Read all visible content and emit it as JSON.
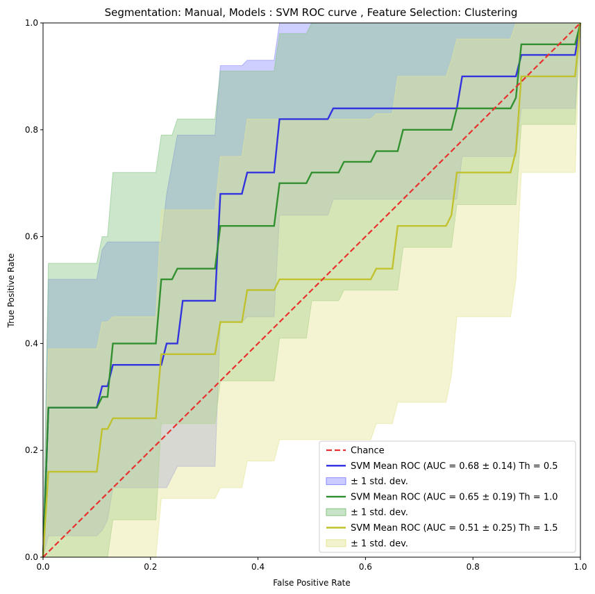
{
  "chart_data": {
    "type": "line",
    "title": "Segmentation: Manual, Models : SVM ROC curve , Feature Selection: Clustering",
    "xlabel": "False Positive Rate",
    "ylabel": "True Positive Rate",
    "xlim": [
      0,
      1
    ],
    "ylim": [
      0,
      1
    ],
    "xticks": [
      "0.0",
      "0.2",
      "0.4",
      "0.6",
      "0.8",
      "1.0"
    ],
    "yticks": [
      "0.0",
      "0.2",
      "0.4",
      "0.6",
      "0.8",
      "1.0"
    ],
    "grid": false,
    "legend_position": "lower-right",
    "chance": {
      "name": "Chance",
      "color": "#e8312f",
      "x": [
        0,
        1
      ],
      "y": [
        0,
        1
      ]
    },
    "series": [
      {
        "name": "SVM Mean ROC (AUC = 0.68 ± 0.14) Th = 0.5",
        "color": "#2a2ae0",
        "band_name": "± 1 std. dev.",
        "band_color": "#8c8cff",
        "x": [
          0,
          0.01,
          0.1,
          0.11,
          0.12,
          0.13,
          0.22,
          0.23,
          0.25,
          0.26,
          0.32,
          0.33,
          0.37,
          0.38,
          0.43,
          0.44,
          0.53,
          0.54,
          0.77,
          0.78,
          0.88,
          0.89,
          0.99,
          1.0
        ],
        "y": [
          0,
          0.28,
          0.28,
          0.32,
          0.32,
          0.36,
          0.36,
          0.4,
          0.4,
          0.48,
          0.48,
          0.68,
          0.68,
          0.72,
          0.72,
          0.82,
          0.82,
          0.84,
          0.84,
          0.9,
          0.9,
          0.94,
          0.94,
          1.0
        ],
        "upper": [
          0,
          0.52,
          0.52,
          0.575,
          0.59,
          0.59,
          0.59,
          0.68,
          0.79,
          0.79,
          0.79,
          0.92,
          0.92,
          0.93,
          0.93,
          1.0,
          1.0,
          1.0,
          1.0,
          1.0,
          1.0,
          1.0,
          1.0,
          1.0
        ],
        "lower": [
          0,
          0.04,
          0.04,
          0.05,
          0.07,
          0.13,
          0.13,
          0.13,
          0.17,
          0.17,
          0.17,
          0.44,
          0.44,
          0.45,
          0.45,
          0.64,
          0.64,
          0.67,
          0.67,
          0.75,
          0.75,
          0.84,
          0.84,
          1.0
        ]
      },
      {
        "name": "SVM Mean ROC (AUC = 0.65 ± 0.19) Th = 1.0",
        "color": "#2a8c2a",
        "band_name": "± 1 std. dev.",
        "band_color": "#86c486",
        "x": [
          0,
          0.01,
          0.1,
          0.11,
          0.12,
          0.13,
          0.21,
          0.22,
          0.24,
          0.25,
          0.32,
          0.33,
          0.43,
          0.44,
          0.49,
          0.5,
          0.55,
          0.56,
          0.61,
          0.62,
          0.66,
          0.67,
          0.76,
          0.77,
          0.87,
          0.88,
          0.89,
          0.99,
          1.0
        ],
        "y": [
          0,
          0.28,
          0.28,
          0.3,
          0.3,
          0.4,
          0.4,
          0.52,
          0.52,
          0.54,
          0.54,
          0.62,
          0.62,
          0.7,
          0.7,
          0.72,
          0.72,
          0.74,
          0.74,
          0.76,
          0.76,
          0.8,
          0.8,
          0.84,
          0.84,
          0.86,
          0.96,
          0.96,
          1.0
        ],
        "upper": [
          0,
          0.55,
          0.55,
          0.6,
          0.6,
          0.72,
          0.72,
          0.79,
          0.79,
          0.82,
          0.82,
          0.91,
          0.91,
          0.98,
          0.98,
          1.0,
          1.0,
          1.0,
          1.0,
          1.0,
          1.0,
          1.0,
          1.0,
          1.0,
          1.0,
          1.0,
          1.0,
          1.0,
          1.0
        ],
        "lower": [
          0,
          0.0,
          0.0,
          0.0,
          0.0,
          0.07,
          0.07,
          0.25,
          0.25,
          0.25,
          0.25,
          0.33,
          0.33,
          0.41,
          0.41,
          0.48,
          0.48,
          0.5,
          0.5,
          0.5,
          0.5,
          0.58,
          0.58,
          0.66,
          0.66,
          0.66,
          0.81,
          0.81,
          1.0
        ]
      },
      {
        "name": "SVM Mean ROC (AUC = 0.51 ± 0.25) Th = 1.5",
        "color": "#c0c028",
        "band_name": "± 1 std. dev.",
        "band_color": "#e4e496",
        "x": [
          0,
          0.01,
          0.1,
          0.11,
          0.12,
          0.13,
          0.21,
          0.22,
          0.32,
          0.33,
          0.37,
          0.38,
          0.43,
          0.44,
          0.61,
          0.62,
          0.65,
          0.66,
          0.75,
          0.76,
          0.77,
          0.87,
          0.88,
          0.89,
          0.99,
          1.0
        ],
        "y": [
          0,
          0.16,
          0.16,
          0.24,
          0.24,
          0.26,
          0.26,
          0.38,
          0.38,
          0.44,
          0.44,
          0.5,
          0.5,
          0.52,
          0.52,
          0.54,
          0.54,
          0.62,
          0.62,
          0.64,
          0.72,
          0.72,
          0.76,
          0.9,
          0.9,
          1.0
        ],
        "upper": [
          0,
          0.39,
          0.39,
          0.44,
          0.44,
          0.45,
          0.45,
          0.65,
          0.65,
          0.75,
          0.75,
          0.82,
          0.82,
          0.82,
          0.82,
          0.83,
          0.83,
          0.9,
          0.9,
          0.93,
          0.97,
          0.97,
          1.0,
          1.0,
          1.0,
          1.0
        ],
        "lower": [
          0,
          0.0,
          0.0,
          0.0,
          0.0,
          0.0,
          0.0,
          0.11,
          0.11,
          0.13,
          0.13,
          0.18,
          0.18,
          0.22,
          0.22,
          0.25,
          0.25,
          0.29,
          0.29,
          0.34,
          0.45,
          0.45,
          0.52,
          0.72,
          0.72,
          1.0
        ]
      }
    ]
  }
}
